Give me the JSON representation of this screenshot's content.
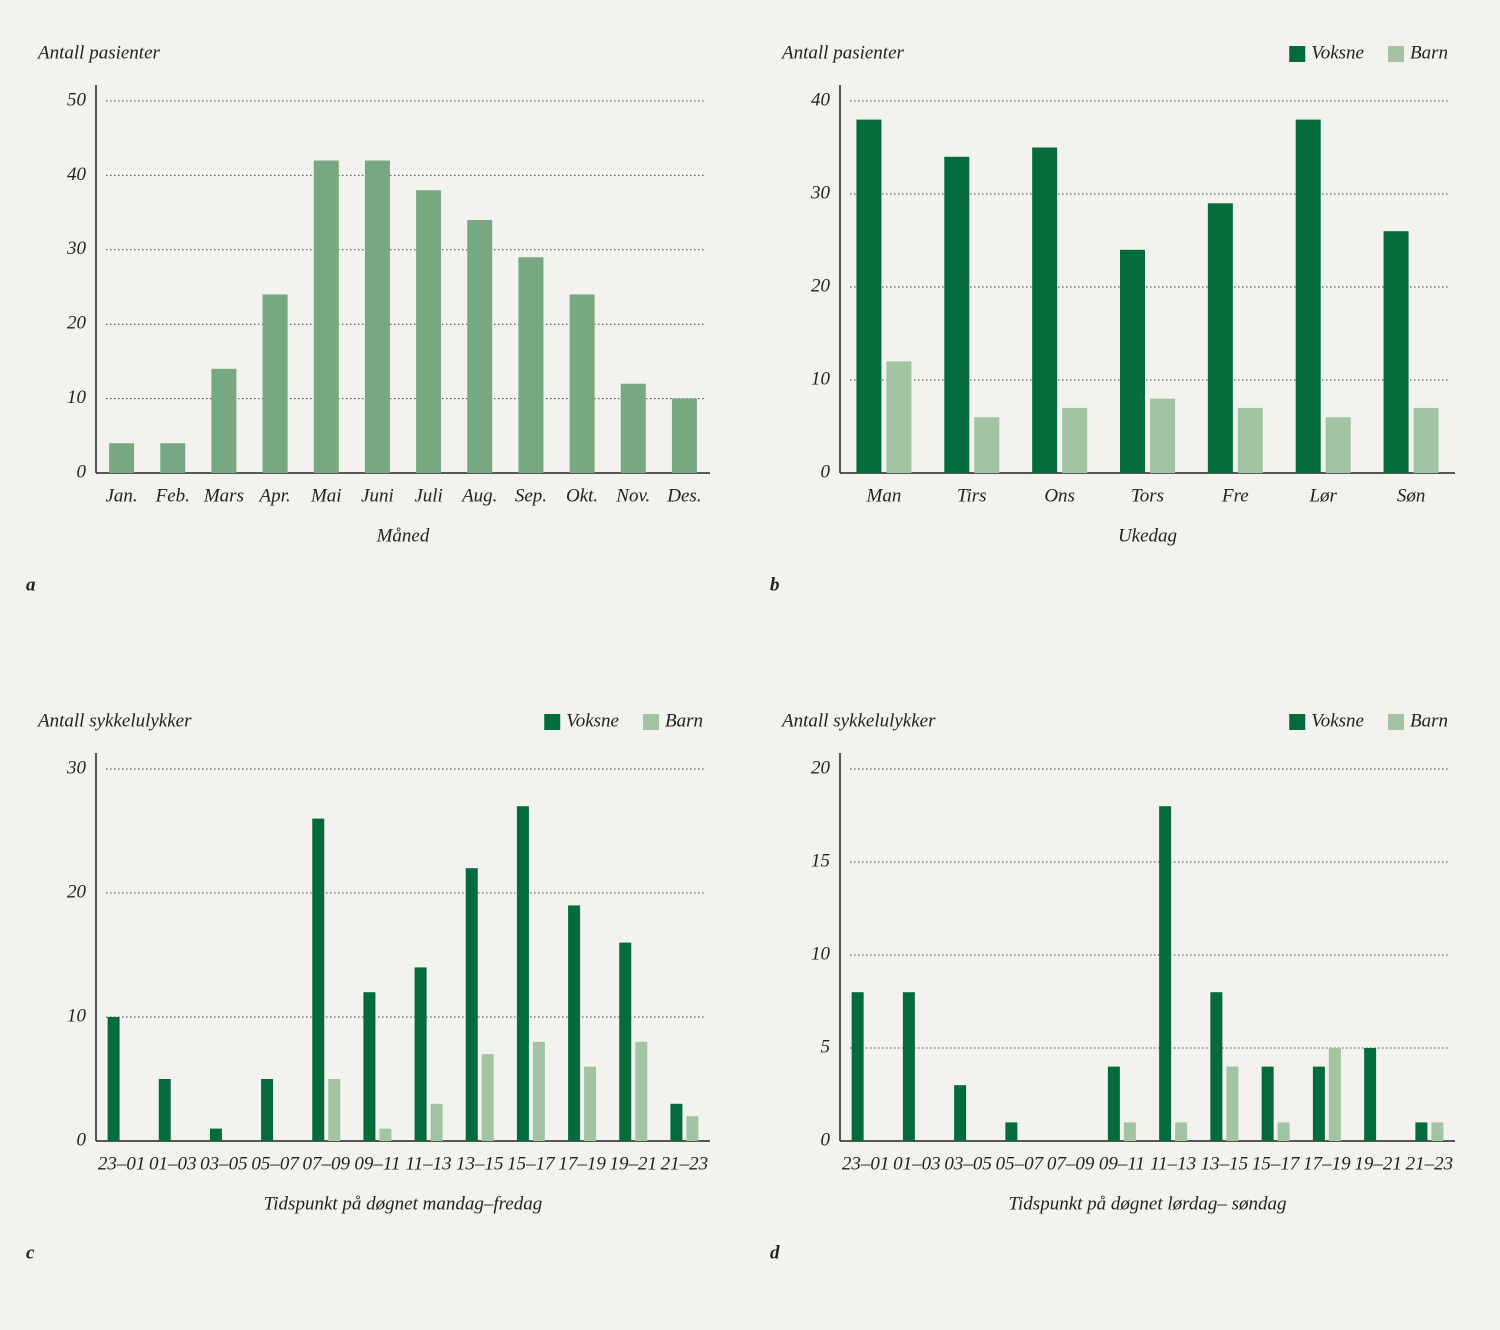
{
  "chart_data": [
    {
      "type": "bar",
      "panel": "a",
      "ylabel": "Antall pasienter",
      "xlabel": "Måned",
      "categories": [
        "Jan.",
        "Feb.",
        "Mars",
        "Apr.",
        "Mai",
        "Juni",
        "Juli",
        "Aug.",
        "Sep.",
        "Okt.",
        "Nov.",
        "Des."
      ],
      "values": [
        4,
        4,
        14,
        24,
        42,
        42,
        38,
        34,
        29,
        24,
        12,
        10
      ],
      "color": "#77a882",
      "ylim": [
        0,
        50
      ],
      "yticks": [
        0,
        10,
        20,
        30,
        40,
        50
      ],
      "grid": true
    },
    {
      "type": "bar",
      "panel": "b",
      "ylabel": "Antall pasienter",
      "xlabel": "Ukedag",
      "categories": [
        "Man",
        "Tirs",
        "Ons",
        "Tors",
        "Fre",
        "Lør",
        "Søn"
      ],
      "series": [
        {
          "name": "Voksne",
          "color": "#046b3c",
          "values": [
            38,
            34,
            35,
            24,
            29,
            38,
            26
          ]
        },
        {
          "name": "Barn",
          "color": "#a3c4a3",
          "values": [
            12,
            6,
            7,
            8,
            7,
            6,
            7
          ]
        }
      ],
      "ylim": [
        0,
        40
      ],
      "yticks": [
        0,
        10,
        20,
        30,
        40
      ],
      "grid": true,
      "legend": "top-right"
    },
    {
      "type": "bar",
      "panel": "c",
      "ylabel": "Antall sykkelulykker",
      "xlabel": "Tidspunkt på døgnet mandag–fredag",
      "categories": [
        "23–01",
        "01–03",
        "03–05",
        "05–07",
        "07–09",
        "09–11",
        "11–13",
        "13–15",
        "15–17",
        "17–19",
        "19–21",
        "21–23"
      ],
      "series": [
        {
          "name": "Voksne",
          "color": "#046b3c",
          "values": [
            10,
            5,
            1,
            5,
            26,
            12,
            14,
            22,
            27,
            19,
            16,
            3
          ]
        },
        {
          "name": "Barn",
          "color": "#a3c4a3",
          "values": [
            0,
            0,
            0,
            0,
            5,
            1,
            3,
            7,
            8,
            6,
            8,
            2
          ]
        }
      ],
      "ylim": [
        0,
        30
      ],
      "yticks": [
        0,
        10,
        20,
        30
      ],
      "grid": true,
      "legend": "top-right"
    },
    {
      "type": "bar",
      "panel": "d",
      "ylabel": "Antall sykkelulykker",
      "xlabel": "Tidspunkt på døgnet lørdag– søndag",
      "categories": [
        "23–01",
        "01–03",
        "03–05",
        "05–07",
        "07–09",
        "09–11",
        "11–13",
        "13–15",
        "15–17",
        "17–19",
        "19–21",
        "21–23"
      ],
      "series": [
        {
          "name": "Voksne",
          "color": "#046b3c",
          "values": [
            8,
            8,
            3,
            1,
            0,
            4,
            18,
            8,
            4,
            4,
            5,
            1
          ]
        },
        {
          "name": "Barn",
          "color": "#a3c4a3",
          "values": [
            0,
            0,
            0,
            0,
            0,
            1,
            1,
            4,
            1,
            5,
            0,
            1
          ]
        }
      ],
      "ylim": [
        0,
        20
      ],
      "yticks": [
        0,
        5,
        10,
        15,
        20
      ],
      "grid": true,
      "legend": "top-right"
    }
  ]
}
